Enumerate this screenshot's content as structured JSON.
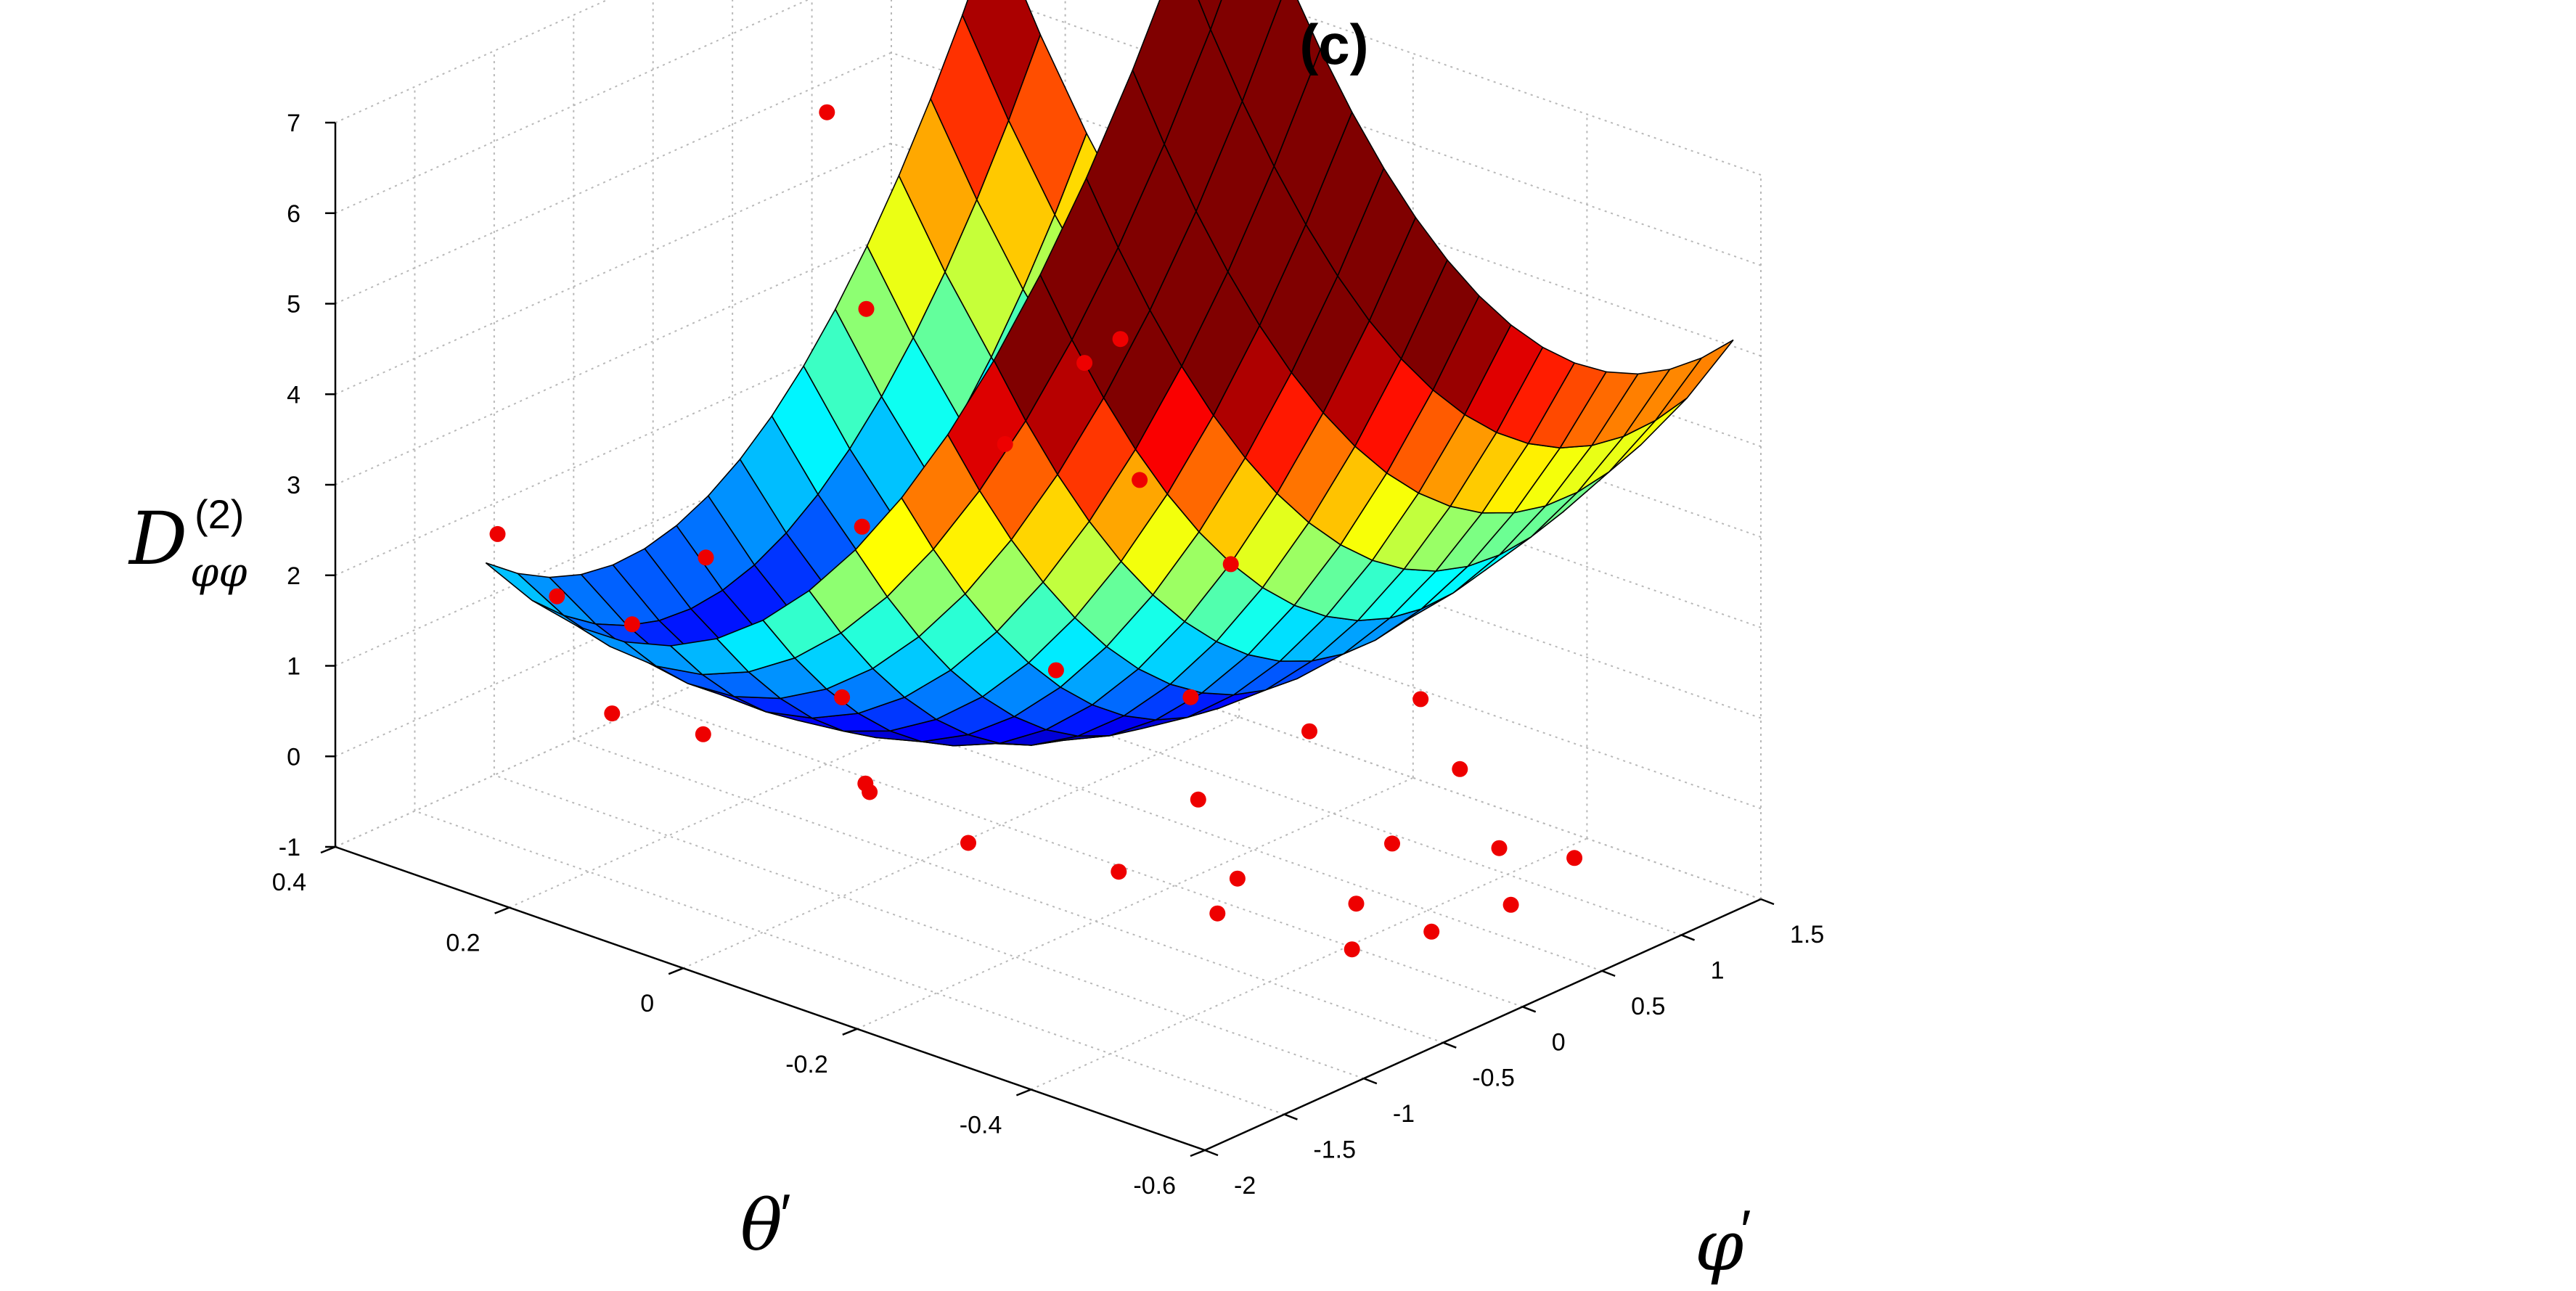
{
  "chart_data": {
    "type": "surface3d",
    "title": "(c)",
    "xlabel_main": "φ",
    "xlabel_prime": "′",
    "ylabel_main": "θ",
    "ylabel_prime": "′",
    "zlabel_main": "D",
    "zlabel_super": "(2)",
    "zlabel_sub": "φφ",
    "xlim": [
      -2,
      1.5
    ],
    "ylim": [
      -0.6,
      0.4
    ],
    "zlim": [
      -1,
      7
    ],
    "xticks": [
      "-2",
      "-1.5",
      "-1",
      "-0.5",
      "0",
      "0.5",
      "1",
      "1.5"
    ],
    "yticks": [
      "-0.6",
      "-0.4",
      "-0.2",
      "0",
      "0.2",
      "0.4"
    ],
    "zticks": [
      "-1",
      "0",
      "1",
      "2",
      "3",
      "4",
      "5",
      "6",
      "7"
    ],
    "surface_model": "z = 0.06 + 0.93*phi^2 + 21.9*theta^2 + 4.7*theta*phi",
    "surface_grid": {
      "phi_range": [
        -1.6,
        1.6
      ],
      "theta_range": [
        -0.55,
        0.3
      ],
      "phi_steps": 16,
      "theta_steps": 16
    },
    "colormap": "jet",
    "color_range": [
      0,
      6
    ],
    "scatter_color": "#ee0000",
    "scatter": [
      {
        "x": -1.8,
        "y": 0.25,
        "z": 2.8
      },
      {
        "x": -1.7,
        "y": 0.2,
        "z": 2.2
      },
      {
        "x": -1.5,
        "y": 0.15,
        "z": 1.9
      },
      {
        "x": -1.2,
        "y": 0.12,
        "z": 2.5
      },
      {
        "x": -1.6,
        "y": 0.05,
        "z": 1.1
      },
      {
        "x": -1.9,
        "y": 0.1,
        "z": 1.4
      },
      {
        "x": -1.4,
        "y": -0.1,
        "z": 0.9
      },
      {
        "x": -1.1,
        "y": -0.05,
        "z": 0.4
      },
      {
        "x": -1.3,
        "y": -0.2,
        "z": 0.5
      },
      {
        "x": -0.9,
        "y": -0.3,
        "z": 0.2
      },
      {
        "x": -1.0,
        "y": 0.0,
        "z": 1.2
      },
      {
        "x": -0.6,
        "y": 0.05,
        "z": 2.6
      },
      {
        "x": -0.3,
        "y": 0.1,
        "z": 4.6
      },
      {
        "x": 0.0,
        "y": 0.2,
        "z": 6.2
      },
      {
        "x": 0.3,
        "y": 0.05,
        "z": 2.8
      },
      {
        "x": 0.6,
        "y": -0.05,
        "z": 2.5
      },
      {
        "x": 0.8,
        "y": 0.05,
        "z": 3.3
      },
      {
        "x": 1.3,
        "y": 0.1,
        "z": 3.0
      },
      {
        "x": 0.9,
        "y": -0.1,
        "z": 1.5
      },
      {
        "x": -0.2,
        "y": -0.1,
        "z": 1.2
      },
      {
        "x": 0.1,
        "y": -0.2,
        "z": 1.0
      },
      {
        "x": 0.3,
        "y": -0.3,
        "z": 0.8
      },
      {
        "x": -0.4,
        "y": -0.3,
        "z": 0.6
      },
      {
        "x": -0.7,
        "y": -0.4,
        "z": 0.3
      },
      {
        "x": -1.1,
        "y": -0.45,
        "z": 0.4
      },
      {
        "x": -0.5,
        "y": -0.5,
        "z": 0.2
      },
      {
        "x": 0.0,
        "y": -0.45,
        "z": 0.3
      },
      {
        "x": 0.4,
        "y": -0.5,
        "z": 0.1
      },
      {
        "x": 0.7,
        "y": -0.4,
        "z": 0.4
      },
      {
        "x": 1.0,
        "y": -0.3,
        "z": 0.6
      },
      {
        "x": -0.3,
        "y": -0.55,
        "z": -0.1
      },
      {
        "x": 0.2,
        "y": -0.55,
        "z": -0.2
      },
      {
        "x": 0.6,
        "y": -0.55,
        "z": 0.0
      },
      {
        "x": -0.8,
        "y": -0.55,
        "z": 0.1
      }
    ]
  }
}
